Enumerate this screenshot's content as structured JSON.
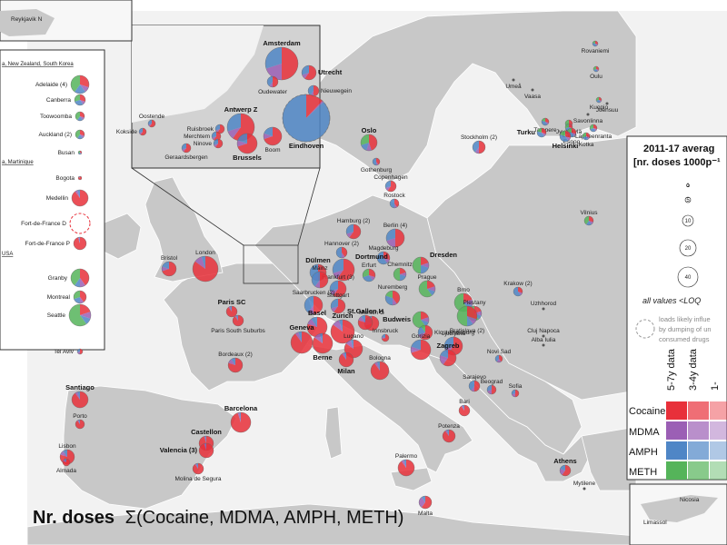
{
  "map": {
    "title": "Nr. doses",
    "title_formula": "Σ(Cocaine, MDMA, AMPH, METH)",
    "colors": {
      "sea": "#ffffff",
      "land": "#c8c8c8",
      "land_dark": "#b4b4b4",
      "border": "#ffffff",
      "cocaine": "#e8303a",
      "mdma": "#9b5fb5",
      "amph": "#4f86c6",
      "meth": "#55b45a"
    }
  },
  "legend": {
    "title_line1": "2011-17 averag",
    "title_line2": "[nr. doses 1000p⁻¹",
    "sizes": [
      "1",
      "5",
      "10",
      "20",
      "40"
    ],
    "loq_note": "all values <LOQ",
    "influence_note_1": "loads likely influe",
    "influence_note_2": "by dumping of un",
    "influence_note_3": "consumed drugs",
    "col_headers": [
      "5-7y data",
      "3-4y data",
      "1-"
    ],
    "substances": [
      "Cocaine",
      "MDMA",
      "AMPH",
      "METH"
    ]
  },
  "insets": {
    "reykjavik": "Reykjavik N",
    "oceania_title": "a, New Zealand, South Korea",
    "oceania": [
      "Adelaide (4)",
      "Canberra",
      "Toowoomba",
      "Auckland (2)",
      "Busan"
    ],
    "latam_title": "a, Martinique",
    "latam": [
      "Bogota",
      "Medellin",
      "Fort-de-France D",
      "Fort-de-France P"
    ],
    "usa_title": "USA",
    "usa": [
      "Granby",
      "Montreal",
      "Seattle"
    ],
    "israel": "Tel Aviv",
    "cyprus": [
      "Nicosia",
      "Limassol"
    ]
  },
  "zoom_inset": {
    "cities": [
      "Amsterdam",
      "Utrecht",
      "Oudewater",
      "Nieuwegein",
      "Antwerp Z",
      "Oostende",
      "Kokside",
      "Ruisbroek",
      "Merchtem",
      "Ninove",
      "Geraardsbergen",
      "Brussels",
      "Boom",
      "Eindhoven"
    ]
  },
  "cities": [
    {
      "name": "Rovaniemi",
      "bold": false,
      "pie": [
        0.3,
        0.1,
        0.4,
        0.2
      ]
    },
    {
      "name": "Oulu",
      "bold": false,
      "pie": [
        0.3,
        0.1,
        0.3,
        0.3
      ]
    },
    {
      "name": "Umeå",
      "bold": false,
      "pie": null
    },
    {
      "name": "Vaasa",
      "bold": false,
      "pie": null
    },
    {
      "name": "Kuopio",
      "bold": false,
      "pie": [
        0.3,
        0.1,
        0.3,
        0.3
      ]
    },
    {
      "name": "Joensuu",
      "bold": false,
      "pie": null
    },
    {
      "name": "Jyväskylä",
      "bold": false,
      "pie": [
        0.3,
        0.1,
        0.3,
        0.3
      ]
    },
    {
      "name": "Tampere",
      "bold": false,
      "pie": [
        0.3,
        0.1,
        0.4,
        0.2
      ]
    },
    {
      "name": "Savonlinna",
      "bold": false,
      "pie": null
    },
    {
      "name": "Lahti",
      "bold": false,
      "pie": [
        0.3,
        0.1,
        0.3,
        0.3
      ]
    },
    {
      "name": "Lappeenranta",
      "bold": false,
      "pie": [
        0.3,
        0.1,
        0.3,
        0.3
      ]
    },
    {
      "name": "Turku",
      "bold": true,
      "pie": [
        0.3,
        0.1,
        0.4,
        0.2
      ]
    },
    {
      "name": "Espoo",
      "bold": false,
      "pie": [
        0.3,
        0.1,
        0.4,
        0.2
      ]
    },
    {
      "name": "Kotka",
      "bold": false,
      "pie": [
        0.3,
        0.1,
        0.3,
        0.3
      ]
    },
    {
      "name": "Helsinki",
      "bold": true,
      "pie": [
        0.3,
        0.1,
        0.4,
        0.2
      ]
    },
    {
      "name": "Oslo",
      "bold": true,
      "pie": [
        0.45,
        0.1,
        0.15,
        0.3
      ]
    },
    {
      "name": "Stockholm (2)",
      "bold": false,
      "pie": [
        0.5,
        0.1,
        0.4,
        0.0
      ]
    },
    {
      "name": "Gothenburg",
      "bold": false,
      "pie": [
        0.4,
        0.1,
        0.5,
        0.0
      ]
    },
    {
      "name": "Copenhagen",
      "bold": false,
      "pie": [
        0.6,
        0.1,
        0.3,
        0.0
      ]
    },
    {
      "name": "Rostock",
      "bold": false,
      "pie": [
        0.4,
        0.1,
        0.5,
        0.0
      ]
    },
    {
      "name": "Vilnius",
      "bold": false,
      "pie": [
        0.3,
        0.1,
        0.2,
        0.4
      ]
    },
    {
      "name": "Hamburg (2)",
      "bold": false,
      "pie": [
        0.6,
        0.1,
        0.3,
        0.0
      ]
    },
    {
      "name": "Berlin (4)",
      "bold": false,
      "pie": [
        0.5,
        0.2,
        0.3,
        0.0
      ]
    },
    {
      "name": "Hannover (2)",
      "bold": false,
      "pie": [
        0.4,
        0.1,
        0.5,
        0.0
      ]
    },
    {
      "name": "Bristol",
      "bold": false,
      "pie": [
        0.7,
        0.1,
        0.2,
        0.0
      ]
    },
    {
      "name": "London",
      "bold": false,
      "pie": [
        0.85,
        0.1,
        0.05,
        0.0
      ]
    },
    {
      "name": "Dülmen",
      "bold": true,
      "pie": [
        0.5,
        0.1,
        0.4,
        0.0
      ]
    },
    {
      "name": "Magdeburg",
      "bold": false,
      "pie": [
        0.3,
        0.1,
        0.6,
        0.0
      ]
    },
    {
      "name": "Dortmund",
      "bold": true,
      "pie": [
        0.6,
        0.1,
        0.3,
        0.0
      ]
    },
    {
      "name": "Erfurt",
      "bold": false,
      "pie": [
        0.3,
        0.1,
        0.3,
        0.3
      ]
    },
    {
      "name": "Chemnitz",
      "bold": false,
      "pie": [
        0.2,
        0.1,
        0.2,
        0.5
      ]
    },
    {
      "name": "Dresden",
      "bold": true,
      "pie": [
        0.2,
        0.1,
        0.2,
        0.5
      ]
    },
    {
      "name": "Frankfurt (3)",
      "bold": false,
      "pie": [
        0.6,
        0.1,
        0.3,
        0.0
      ]
    },
    {
      "name": "Mainz",
      "bold": false,
      "pie": [
        0.5,
        0.1,
        0.4,
        0.0
      ]
    },
    {
      "name": "Prague",
      "bold": false,
      "pie": [
        0.2,
        0.1,
        0.1,
        0.6
      ]
    },
    {
      "name": "Nuremberg",
      "bold": false,
      "pie": [
        0.4,
        0.1,
        0.3,
        0.2
      ]
    },
    {
      "name": "Krakow (2)",
      "bold": false,
      "pie": [
        0.3,
        0.1,
        0.6,
        0.0
      ]
    },
    {
      "name": "Saarbrucken (2)",
      "bold": false,
      "pie": [
        0.5,
        0.1,
        0.4,
        0.0
      ]
    },
    {
      "name": "Stuttgart",
      "bold": false,
      "pie": [
        0.6,
        0.1,
        0.3,
        0.0
      ]
    },
    {
      "name": "Paris SC",
      "bold": true,
      "pie": [
        0.9,
        0.05,
        0.05,
        0.0
      ]
    },
    {
      "name": "Paris South Suburbs",
      "bold": false,
      "pie": [
        0.9,
        0.05,
        0.05,
        0.0
      ]
    },
    {
      "name": "Brno",
      "bold": false,
      "pie": [
        0.2,
        0.1,
        0.1,
        0.6
      ]
    },
    {
      "name": "Plestany",
      "bold": false,
      "pie": [
        0.2,
        0.1,
        0.1,
        0.6
      ]
    },
    {
      "name": "Uzhhorod",
      "bold": false,
      "pie": null
    },
    {
      "name": "Budweis",
      "bold": true,
      "pie": [
        0.2,
        0.1,
        0.1,
        0.6
      ]
    },
    {
      "name": "Munich G",
      "bold": false,
      "pie": [
        0.7,
        0.1,
        0.2,
        0.0
      ]
    },
    {
      "name": "Klosterneuburg",
      "bold": false,
      "pie": [
        0.6,
        0.1,
        0.2,
        0.1
      ]
    },
    {
      "name": "Bratislava (2)",
      "bold": false,
      "pie": [
        0.3,
        0.1,
        0.1,
        0.5
      ]
    },
    {
      "name": "Basel",
      "bold": true,
      "pie": [
        0.8,
        0.1,
        0.1,
        0.0
      ]
    },
    {
      "name": "Zurich",
      "bold": true,
      "pie": [
        0.85,
        0.1,
        0.05,
        0.0
      ]
    },
    {
      "name": "St.Gallen H",
      "bold": true,
      "pie": [
        0.8,
        0.1,
        0.1,
        0.0
      ]
    },
    {
      "name": "Geneva",
      "bold": true,
      "pie": [
        0.9,
        0.05,
        0.05,
        0.0
      ]
    },
    {
      "name": "Berne",
      "bold": true,
      "pie": [
        0.85,
        0.1,
        0.05,
        0.0
      ]
    },
    {
      "name": "Lugano",
      "bold": false,
      "pie": [
        0.85,
        0.1,
        0.05,
        0.0
      ]
    },
    {
      "name": "Innsbruck",
      "bold": false,
      "pie": [
        0.7,
        0.1,
        0.2,
        0.0
      ]
    },
    {
      "name": "Ljubljana",
      "bold": false,
      "pie": [
        0.6,
        0.1,
        0.3,
        0.0
      ]
    },
    {
      "name": "Cluj Napoca",
      "bold": false,
      "pie": null
    },
    {
      "name": "Alba Iulia",
      "bold": false,
      "pie": null
    },
    {
      "name": "Milan",
      "bold": true,
      "pie": [
        0.9,
        0.05,
        0.05,
        0.0
      ]
    },
    {
      "name": "Gorizia",
      "bold": false,
      "pie": [
        0.7,
        0.1,
        0.2,
        0.0
      ]
    },
    {
      "name": "Zagreb",
      "bold": true,
      "pie": [
        0.6,
        0.2,
        0.2,
        0.0
      ]
    },
    {
      "name": "Bordeaux (2)",
      "bold": false,
      "pie": [
        0.8,
        0.1,
        0.1,
        0.0
      ]
    },
    {
      "name": "Bologna",
      "bold": false,
      "pie": [
        0.9,
        0.05,
        0.05,
        0.0
      ]
    },
    {
      "name": "Novi Sad",
      "bold": false,
      "pie": [
        0.4,
        0.2,
        0.4,
        0.0
      ]
    },
    {
      "name": "Sarajevo",
      "bold": false,
      "pie": [
        0.5,
        0.1,
        0.4,
        0.0
      ]
    },
    {
      "name": "Beograd",
      "bold": false,
      "pie": [
        0.5,
        0.2,
        0.3,
        0.0
      ]
    },
    {
      "name": "Sofia",
      "bold": false,
      "pie": [
        0.5,
        0.2,
        0.3,
        0.0
      ]
    },
    {
      "name": "Santiago",
      "bold": true,
      "pie": [
        0.9,
        0.05,
        0.05,
        0.0
      ]
    },
    {
      "name": "Porto",
      "bold": false,
      "pie": [
        0.9,
        0.05,
        0.05,
        0.0
      ]
    },
    {
      "name": "Barcelona",
      "bold": true,
      "pie": [
        0.95,
        0.03,
        0.02,
        0.0
      ]
    },
    {
      "name": "Bari",
      "bold": false,
      "pie": [
        0.9,
        0.05,
        0.05,
        0.0
      ]
    },
    {
      "name": "Potenza",
      "bold": false,
      "pie": [
        0.9,
        0.05,
        0.05,
        0.0
      ]
    },
    {
      "name": "Castellon",
      "bold": true,
      "pie": [
        0.95,
        0.03,
        0.02,
        0.0
      ]
    },
    {
      "name": "Lisbon",
      "bold": false,
      "pie": [
        0.8,
        0.1,
        0.1,
        0.0
      ]
    },
    {
      "name": "Valencia (3)",
      "bold": true,
      "pie": [
        0.95,
        0.03,
        0.02,
        0.0
      ]
    },
    {
      "name": "Almada",
      "bold": false,
      "pie": [
        0.8,
        0.1,
        0.1,
        0.0
      ]
    },
    {
      "name": "Molina de Segura",
      "bold": false,
      "pie": [
        0.9,
        0.05,
        0.05,
        0.0
      ]
    },
    {
      "name": "Palermo",
      "bold": false,
      "pie": [
        0.9,
        0.05,
        0.05,
        0.0
      ]
    },
    {
      "name": "Athens",
      "bold": true,
      "pie": [
        0.6,
        0.2,
        0.2,
        0.0
      ]
    },
    {
      "name": "Mytilene",
      "bold": false,
      "pie": null
    },
    {
      "name": "Malta",
      "bold": false,
      "pie": [
        0.6,
        0.3,
        0.1,
        0.0
      ]
    }
  ]
}
